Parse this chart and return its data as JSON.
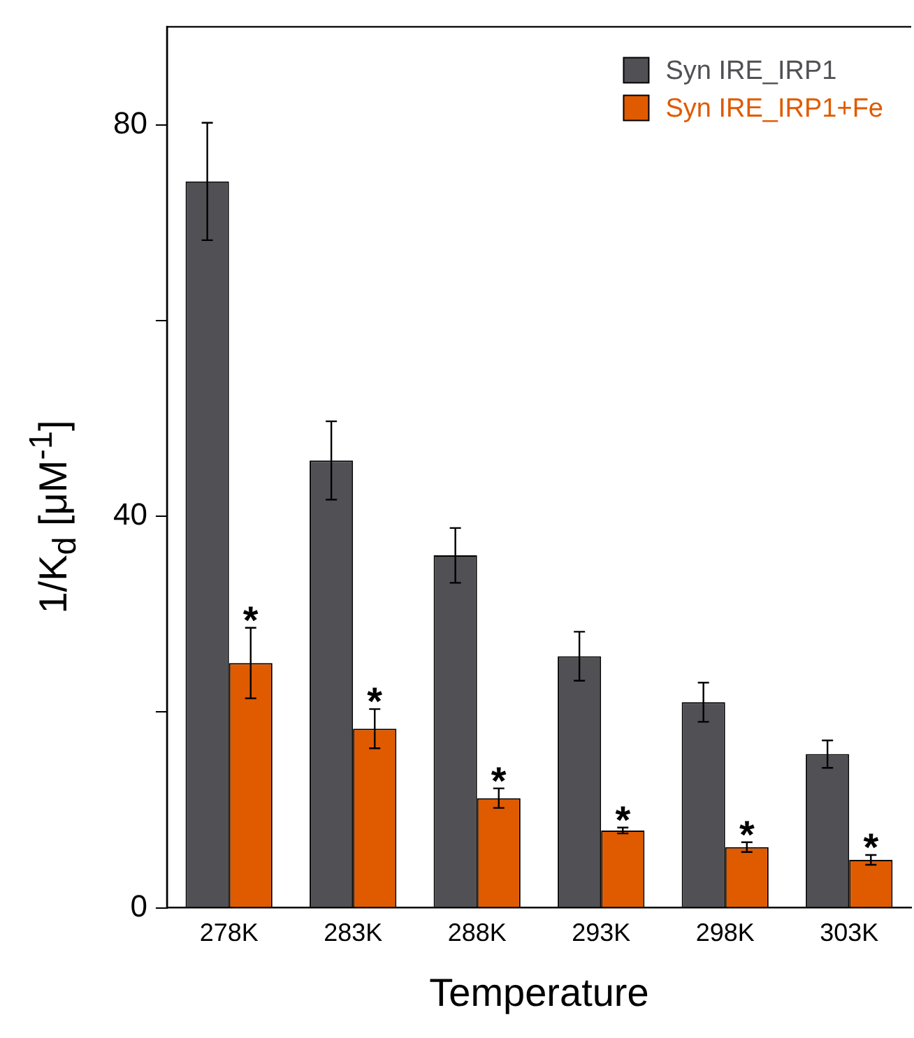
{
  "chart_data": {
    "type": "bar",
    "xlabel": "Temperature",
    "ylabel": "1/K$_{d}$ [μM$^{-1}$]",
    "categories": [
      "278K",
      "283K",
      "288K",
      "293K",
      "298K",
      "303K"
    ],
    "series": [
      {
        "name": "Syn IRE_IRP1",
        "color": "#515155",
        "values": [
          74.2,
          45.7,
          36.0,
          25.7,
          21.0,
          15.7
        ],
        "errors": [
          6.0,
          4.0,
          2.8,
          2.5,
          2.0,
          1.4
        ]
      },
      {
        "name": "Syn IRE_IRP1+Fe",
        "color": "#e05a00",
        "values": [
          25.0,
          18.3,
          11.2,
          7.9,
          6.2,
          4.9
        ],
        "errors": [
          3.6,
          2.0,
          1.0,
          0.3,
          0.5,
          0.5
        ]
      }
    ],
    "ylim": [
      0,
      90
    ],
    "yticks": [
      0,
      {
        "value": 20,
        "label": null
      },
      40,
      {
        "value": 60,
        "label": null
      },
      80
    ],
    "legend": "top right",
    "annotations": [
      {
        "text": "*",
        "x": "278K",
        "y": 28.6
      },
      {
        "text": "*",
        "x": "283K",
        "y": 20.3
      },
      {
        "text": "*",
        "x": "288K",
        "y": 12.2
      },
      {
        "text": "*",
        "x": "293K",
        "y": 8.2
      },
      {
        "text": "*",
        "x": "298K",
        "y": 6.7
      },
      {
        "text": "*",
        "x": "303K",
        "y": 5.4
      }
    ]
  }
}
